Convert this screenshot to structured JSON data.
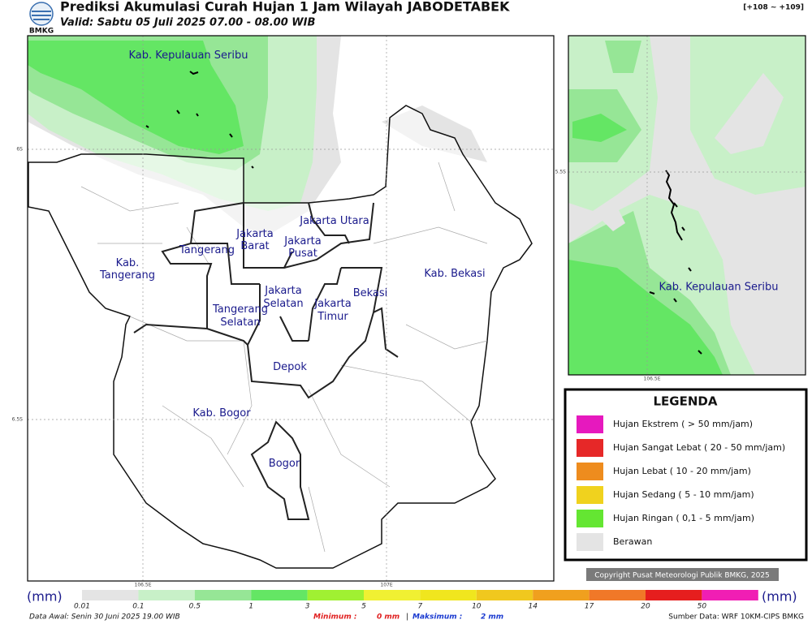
{
  "header": {
    "logo": "BMKG",
    "title": "Prediksi Akumulasi Curah Hujan 1 Jam Wilayah JABODETABEK",
    "valid": "Valid: Sabtu 05 Juli 2025 07.00 - 08.00 WIB",
    "code": "[+108 ~ +109]"
  },
  "map": {
    "labels": [
      [
        "Kab. Kepulauan Seribu"
      ],
      [
        "Jakarta Utara"
      ],
      [
        "Jakarta",
        "Barat"
      ],
      [
        "Jakarta",
        "Pusat"
      ],
      [
        "Tangerang"
      ],
      [
        "Kab.",
        "Tangerang"
      ],
      [
        "Jakarta",
        "Selatan"
      ],
      [
        "Jakarta",
        "Timur"
      ],
      [
        "Bekasi"
      ],
      [
        "Kab. Bekasi"
      ],
      [
        "Tangerang",
        "Selatan"
      ],
      [
        "Depok"
      ],
      [
        "Kab. Bogor"
      ],
      [
        "Bogor"
      ]
    ],
    "lat_labels": [
      "6S",
      "6.5S"
    ],
    "lon_labels": [
      "106.5E",
      "107E"
    ]
  },
  "inset": {
    "label": "Kab. Kepulauan Seribu",
    "lat_label": "5.5S",
    "lon_label": "106.5E"
  },
  "legend": {
    "title": "LEGENDA",
    "items": [
      {
        "label": "Hujan Ekstrem ( > 50 mm/jam)",
        "color": "#e619be"
      },
      {
        "label": "Hujan Sangat Lebat ( 20 - 50 mm/jam)",
        "color": "#e62828"
      },
      {
        "label": "Hujan Lebat ( 10 - 20 mm/jam)",
        "color": "#ee8c1e"
      },
      {
        "label": "Hujan Sedang ( 5 - 10 mm/jam)",
        "color": "#f0d21e"
      },
      {
        "label": "Hujan Ringan ( 0,1 - 5 mm/jam)",
        "color": "#64e632"
      },
      {
        "label": "Berawan",
        "color": "#e4e4e4"
      }
    ]
  },
  "copyright": "Copyright Pusat Meteorologi Publik BMKG, 2025",
  "colorbar": {
    "unit": "(mm)",
    "labels": [
      "0.01",
      "0.1",
      "0.5",
      "1",
      "3",
      "5",
      "7",
      "10",
      "14",
      "17",
      "20",
      "50"
    ],
    "colors": [
      "#e4e4e4",
      "#c8f0c8",
      "#96e696",
      "#64e664",
      "#a0f032",
      "#f0f032",
      "#f0e61e",
      "#f0c81e",
      "#f0a01e",
      "#f07828",
      "#e61e1e",
      "#f01eb4"
    ]
  },
  "footer": {
    "data_awal": "Data Awal: Senin 30 Juni 2025 19.00 WIB",
    "min_label": "Minimum :",
    "min_value": "0 mm",
    "separator": "|",
    "max_label": "Maksimum :",
    "max_value": "2 mm",
    "source": "Sumber Data: WRF 10KM-CIPS BMKG"
  }
}
